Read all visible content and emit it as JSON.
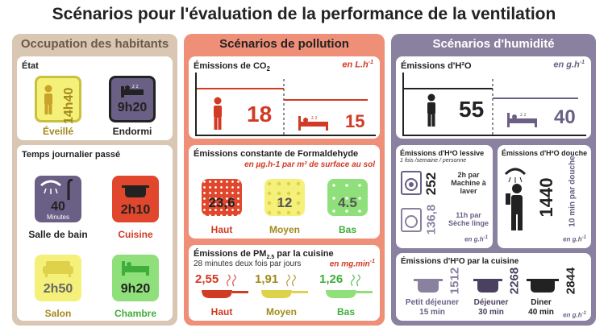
{
  "title": "Scénarios pour l'évaluation de la performance de la ventilation",
  "occupation": {
    "header": "Occupation des habitants",
    "etat": {
      "label": "État",
      "awake_value": "14h40",
      "awake_label": "Éveillé",
      "sleep_value": "9h20",
      "sleep_label": "Endormi"
    },
    "temps": {
      "label": "Temps journalier passé",
      "bath_value": "40",
      "bath_unit": "Minutes",
      "bath_label": "Salle de bain",
      "kitchen_value": "2h10",
      "kitchen_label": "Cuisine",
      "salon_value": "2h50",
      "salon_label": "Salon",
      "bedroom_value": "9h20",
      "bedroom_label": "Chambre"
    }
  },
  "pollution": {
    "header": "Scénarios de pollution",
    "co2": {
      "label_pre": "Émissions de CO",
      "label_sub": "2",
      "unit": "en L.h",
      "unit_sup": "-1",
      "awake": "18",
      "sleep": "15"
    },
    "formal": {
      "label": "Émissions constante de Formaldehyde",
      "unit": "en µg.h-1 par m² de surface au sol",
      "haut": "23,6",
      "moyen": "12",
      "bas": "4.5",
      "haut_label": "Haut",
      "moyen_label": "Moyen",
      "bas_label": "Bas"
    },
    "pm": {
      "label_pre": "Émissions de PM",
      "label_sub": "2.5",
      "label_post": " par la cuisine",
      "desc": "28 minutes deux fois par jours",
      "unit": "en mg.min",
      "unit_sup": "-1",
      "haut": "2,55",
      "moyen": "1,91",
      "bas": "1,26",
      "haut_label": "Haut",
      "moyen_label": "Moyen",
      "bas_label": "Bas"
    }
  },
  "humidite": {
    "header": "Scénarios d'humidité",
    "h2o": {
      "label": "Émissions d'H²O",
      "unit": "en g.h",
      "unit_sup": "-1",
      "awake": "55",
      "sleep": "40"
    },
    "lessive": {
      "label": "Émissions d'H²O lessive",
      "sub": "1 fois /semaine / personne",
      "v1": "252",
      "d1": "2h par Machine à laver",
      "v2": "136,8",
      "d2": "11h par Sèche linge",
      "unit": "en g.h",
      "unit_sup": "-1"
    },
    "douche": {
      "label": "Émissions d'H²O douche",
      "value": "1440",
      "desc": "10 min par douche",
      "unit": "en g.h",
      "unit_sup": "-1"
    },
    "cuisine": {
      "label": "Émissions d'H²O par la cuisine",
      "v1": "1512",
      "l1": "Petit déjeuner",
      "t1": "15 min",
      "v2": "2268",
      "l2": "Déjeuner",
      "t2": "30 min",
      "v3": "2844",
      "l3": "Diner",
      "t3": "40 min",
      "unit": "en g.h",
      "unit_sup": "-1"
    }
  },
  "colors": {
    "col1": "#d9c7b3",
    "col2": "#ef8f78",
    "col3": "#8a809f",
    "yellow": "#f5f07a",
    "purple": "#6a5f85",
    "red": "#e0472c",
    "green": "#8fe07a",
    "accent": "#d13a24"
  }
}
